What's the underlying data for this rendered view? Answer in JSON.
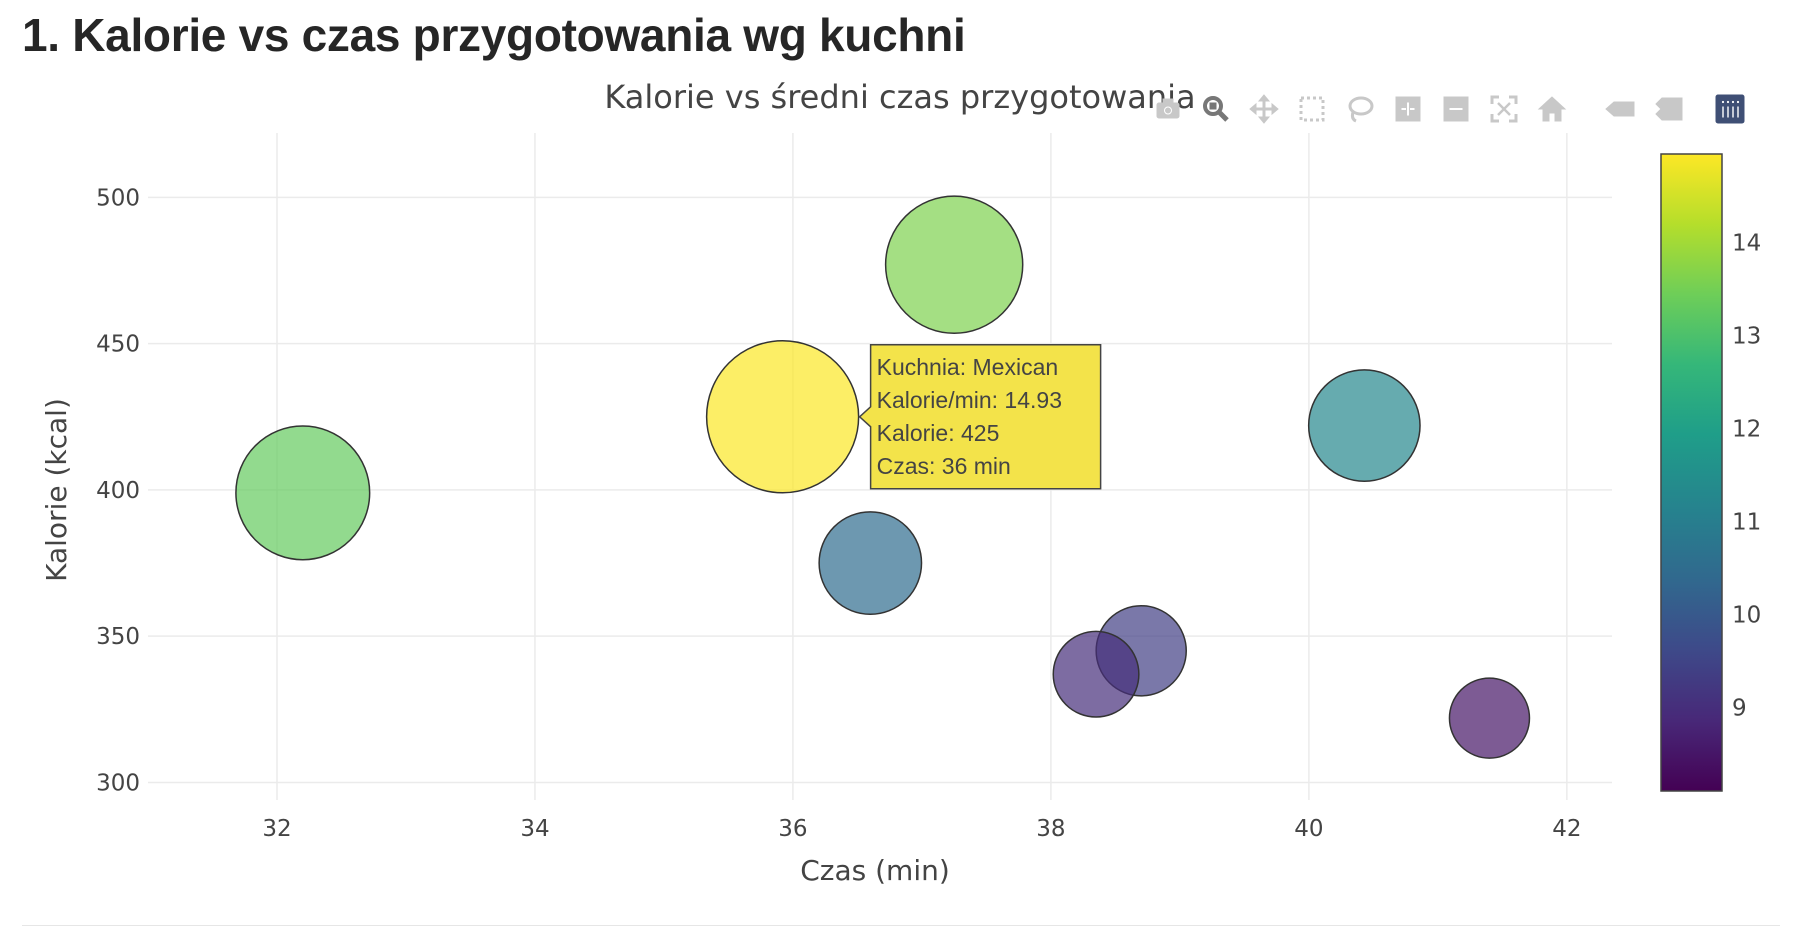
{
  "page": {
    "heading": "1. Kalorie vs czas przygotowania wg kuchni"
  },
  "modebar": {
    "buttons": [
      {
        "name": "camera-icon",
        "active": false
      },
      {
        "name": "zoom-icon",
        "active": true
      },
      {
        "name": "pan-icon",
        "active": false
      },
      {
        "name": "box-select-icon",
        "active": false
      },
      {
        "name": "lasso-select-icon",
        "active": false
      },
      {
        "name": "zoom-in-icon",
        "active": false
      },
      {
        "name": "zoom-out-icon",
        "active": false
      },
      {
        "name": "autoscale-icon",
        "active": false
      },
      {
        "name": "reset-axes-icon",
        "active": false
      },
      {
        "name": "spike-lines-icon",
        "active": false
      },
      {
        "name": "compare-hover-icon",
        "active": false
      },
      {
        "name": "plotly-logo-icon",
        "active": false
      }
    ],
    "inactive_color": "#c8c8c8",
    "active_color": "#777777",
    "logo_color": "#3f4f75"
  },
  "chart_data": {
    "type": "scatter",
    "title": "Kalorie vs średni czas przygotowania",
    "xlabel": "Czas (min)",
    "ylabel": "Kalorie (kcal)",
    "xlim": [
      31.0,
      42.35
    ],
    "ylim": [
      294,
      522
    ],
    "xticks": [
      32,
      34,
      36,
      38,
      40,
      42
    ],
    "yticks": [
      300,
      350,
      400,
      450,
      500
    ],
    "grid": true,
    "colorscale": "Viridis",
    "colorbar": {
      "min": 8.1,
      "max": 14.95,
      "ticks": [
        9,
        10,
        11,
        12,
        13,
        14
      ]
    },
    "points": [
      {
        "x": 32.2,
        "y": 399,
        "size": 13.3,
        "color": 13.3,
        "name": ""
      },
      {
        "x": 35.92,
        "y": 425,
        "size": 14.93,
        "color": 14.93,
        "name": "Mexican"
      },
      {
        "x": 37.25,
        "y": 477,
        "size": 13.6,
        "color": 13.6,
        "name": ""
      },
      {
        "x": 36.6,
        "y": 375,
        "size": 10.5,
        "color": 10.5,
        "name": ""
      },
      {
        "x": 40.43,
        "y": 422,
        "size": 11.3,
        "color": 11.3,
        "name": ""
      },
      {
        "x": 38.35,
        "y": 337,
        "size": 9.0,
        "color": 9.0,
        "name": ""
      },
      {
        "x": 38.7,
        "y": 345,
        "size": 9.4,
        "color": 9.4,
        "name": ""
      },
      {
        "x": 41.4,
        "y": 322,
        "size": 8.5,
        "color": 8.5,
        "name": ""
      }
    ],
    "hover": {
      "point_index": 1,
      "lines": [
        "Kuchnia: Mexican",
        "Kalorie/min: 14.93",
        "Kalorie: 425",
        "Czas: 36 min"
      ],
      "background": "#f3e34a"
    }
  }
}
